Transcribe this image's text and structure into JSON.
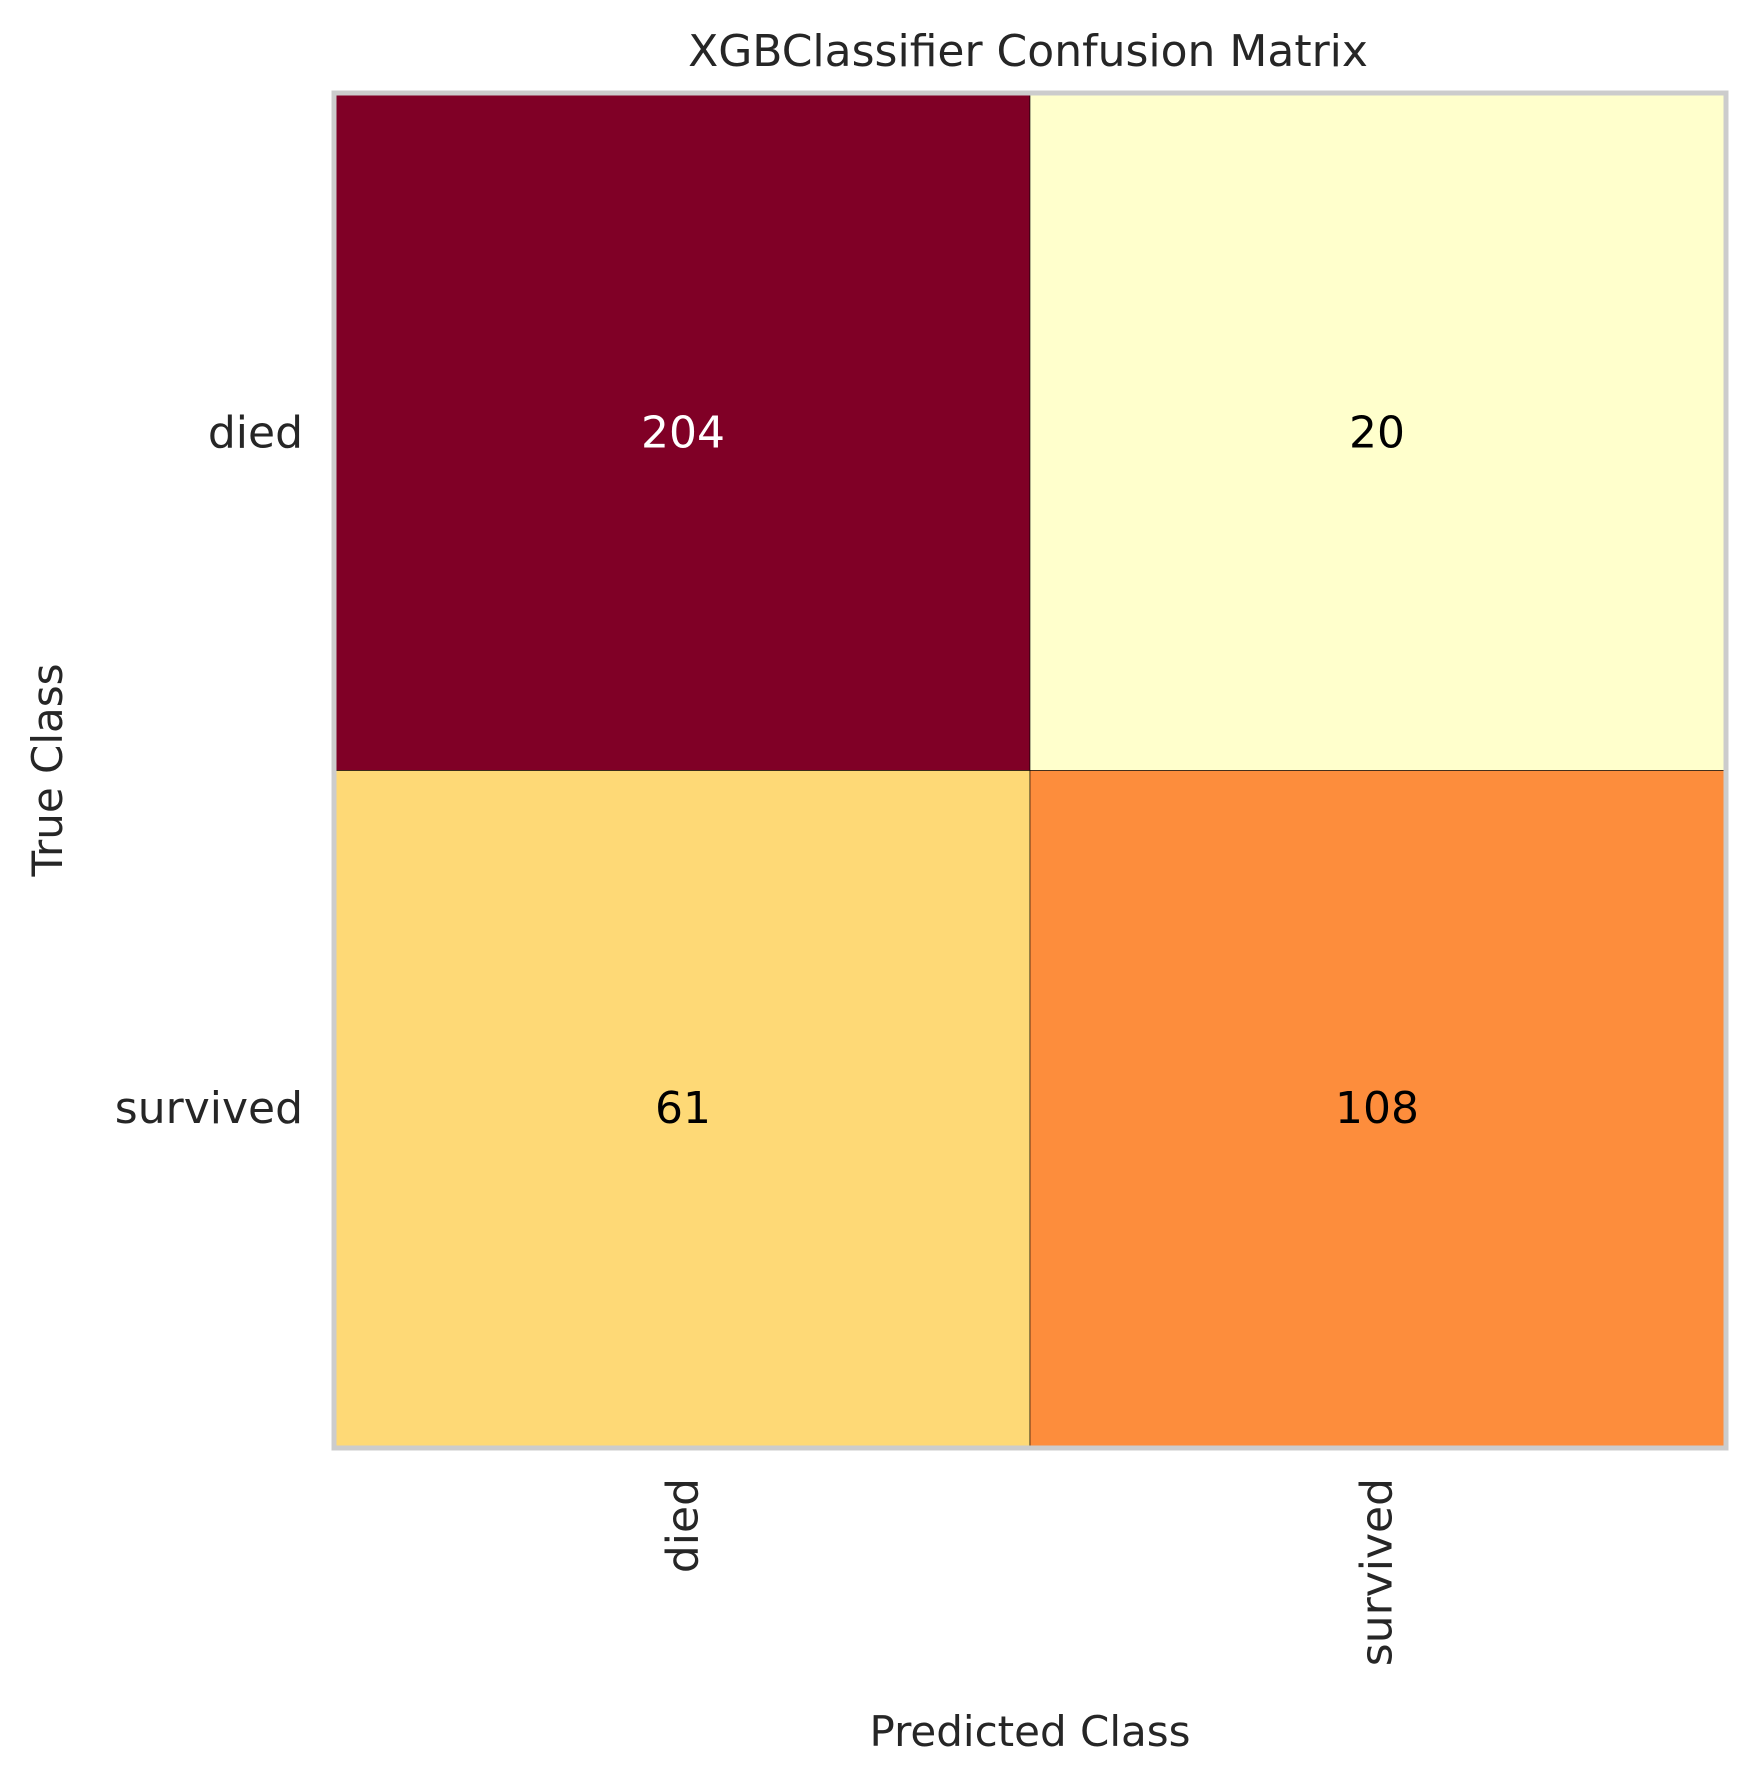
{
  "chart_data": {
    "type": "heatmap",
    "title": "XGBClassifier Confusion Matrix",
    "xlabel": "Predicted Class",
    "ylabel": "True Class",
    "x_categories": [
      "died",
      "survived"
    ],
    "y_categories": [
      "died",
      "survived"
    ],
    "values": [
      [
        204,
        20
      ],
      [
        61,
        108
      ]
    ],
    "cell_colors": [
      [
        "#800026",
        "#ffffcc"
      ],
      [
        "#fed976",
        "#fd8d3c"
      ]
    ],
    "text_colors": [
      [
        "#ffffff",
        "#000000"
      ],
      [
        "#000000",
        "#000000"
      ]
    ],
    "grid": false,
    "legend": "none"
  }
}
